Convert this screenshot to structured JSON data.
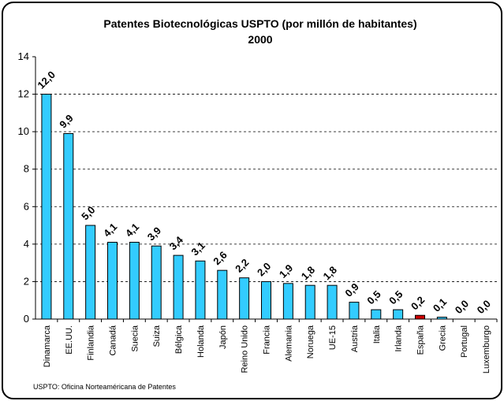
{
  "chart_data": {
    "type": "bar",
    "title": "Patentes Biotecnológicas USPTO (por millón de habitantes)",
    "subtitle": "2000",
    "categories": [
      "Dinamarca",
      "EE.UU.",
      "Finlandia",
      "Canadá",
      "Suecia",
      "Suiza",
      "Bélgica",
      "Holanda",
      "Japón",
      "Reino Unido",
      "Francia",
      "Alemania",
      "Noruega",
      "UE-15",
      "Austria",
      "Italia",
      "Irlanda",
      "España",
      "Grecia",
      "Portugal",
      "Luxemburgo"
    ],
    "values": [
      12.0,
      9.9,
      5.0,
      4.1,
      4.1,
      3.9,
      3.4,
      3.1,
      2.6,
      2.2,
      2.0,
      1.9,
      1.8,
      1.8,
      0.9,
      0.5,
      0.5,
      0.2,
      0.1,
      0.0,
      0.0
    ],
    "value_labels": [
      "12,0",
      "9,9",
      "5,0",
      "4,1",
      "4,1",
      "3,9",
      "3,4",
      "3,1",
      "2,6",
      "2,2",
      "2,0",
      "1,9",
      "1,8",
      "1,8",
      "0,9",
      "0,5",
      "0,5",
      "0,2",
      "0,1",
      "0,0",
      "0,0"
    ],
    "colors": [
      "#33ccff",
      "#33ccff",
      "#33ccff",
      "#33ccff",
      "#33ccff",
      "#33ccff",
      "#33ccff",
      "#33ccff",
      "#33ccff",
      "#33ccff",
      "#33ccff",
      "#33ccff",
      "#33ccff",
      "#33ccff",
      "#33ccff",
      "#33ccff",
      "#33ccff",
      "#cc0000",
      "#33ccff",
      "#33ccff",
      "#33ccff"
    ],
    "ylim": [
      0,
      14
    ],
    "yticks": [
      0,
      2,
      4,
      6,
      8,
      10,
      12,
      14
    ],
    "grid": true,
    "footnote": "USPTO: Oficina Norteaméricana de Patentes"
  }
}
